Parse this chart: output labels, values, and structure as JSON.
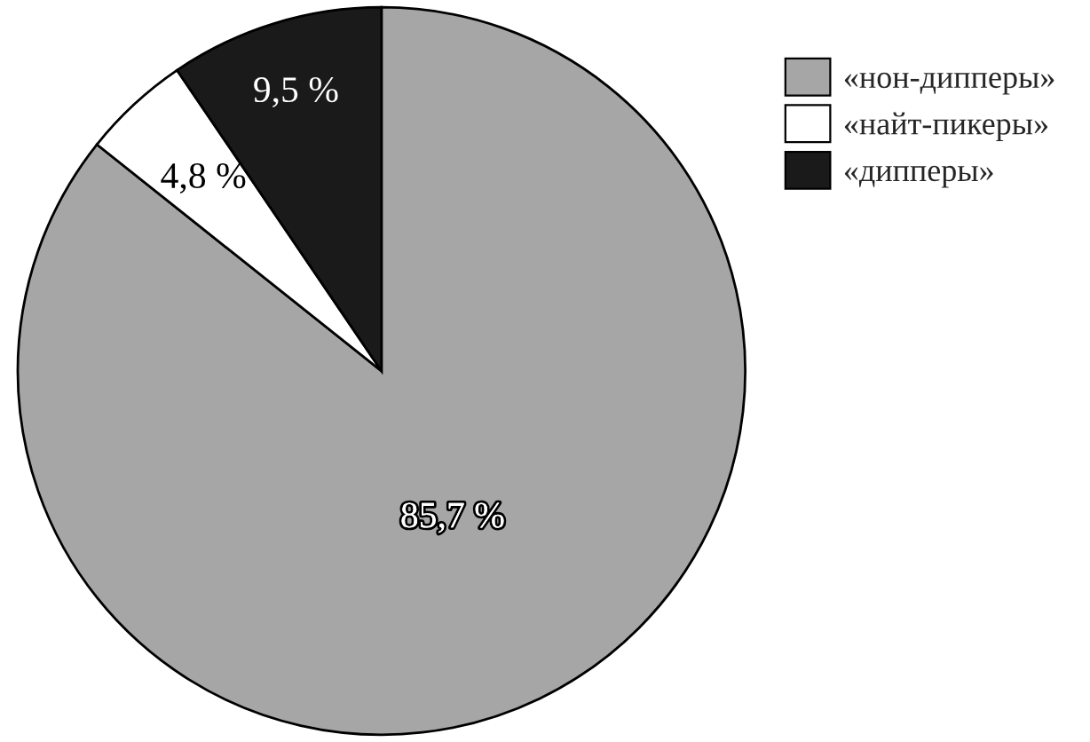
{
  "chart_data": {
    "type": "pie",
    "categories": [
      "«нон-дипперы»",
      "«найт-пикеры»",
      "«дипперы»"
    ],
    "values": [
      85.7,
      4.8,
      9.5
    ],
    "colors": [
      "#a6a6a6",
      "#ffffff",
      "#1a1a1a"
    ],
    "value_labels": [
      "85,7 %",
      "4,8 %",
      "9,5 %"
    ],
    "legend": "top right"
  }
}
